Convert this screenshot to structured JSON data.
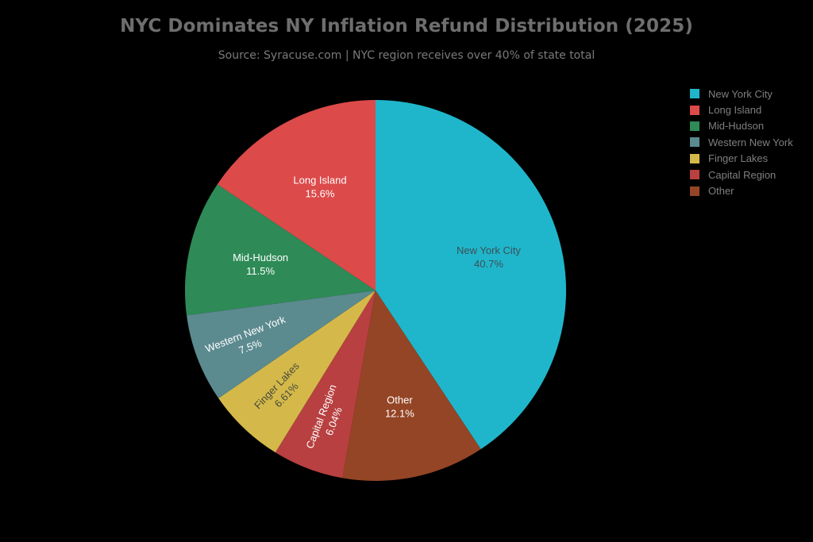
{
  "chart": {
    "title": "NYC Dominates NY Inflation Refund Distribution (2025)",
    "subtitle": "Source: Syracuse.com | NYC region receives over 40% of state total"
  },
  "legend": {
    "items": [
      {
        "label": "New York City",
        "color": "#1fb6cb"
      },
      {
        "label": "Long Island",
        "color": "#dc4a4a"
      },
      {
        "label": "Mid-Hudson",
        "color": "#2e8b57"
      },
      {
        "label": "Western New York",
        "color": "#5b8a8f"
      },
      {
        "label": "Finger Lakes",
        "color": "#d4b94a"
      },
      {
        "label": "Capital Region",
        "color": "#b84040"
      },
      {
        "label": "Other",
        "color": "#944525"
      }
    ]
  },
  "chart_data": {
    "type": "pie",
    "title": "NYC Dominates NY Inflation Refund Distribution (2025)",
    "subtitle": "Source: Syracuse.com | NYC region receives over 40% of state total",
    "categories": [
      "New York City",
      "Long Island",
      "Mid-Hudson",
      "Western New York",
      "Finger Lakes",
      "Capital Region",
      "Other"
    ],
    "values": [
      40.7,
      15.6,
      11.5,
      7.5,
      6.61,
      6.04,
      12.1
    ],
    "value_labels": [
      "40.7%",
      "15.6%",
      "11.5%",
      "7.5%",
      "6.61%",
      "6.04%",
      "12.1%"
    ],
    "colors": [
      "#1fb6cb",
      "#dc4a4a",
      "#2e8b57",
      "#5b8a8f",
      "#d4b94a",
      "#b84040",
      "#944525"
    ],
    "slice_order_clockwise_from_top": [
      "New York City",
      "Other",
      "Capital Region",
      "Finger Lakes",
      "Western New York",
      "Mid-Hudson",
      "Long Island"
    ],
    "label_text_colors": {
      "New York City": "#3d4f55",
      "Finger Lakes": "#4a4a3a",
      "default": "#ffffff"
    },
    "legend_position": "top-right",
    "grid": false
  }
}
